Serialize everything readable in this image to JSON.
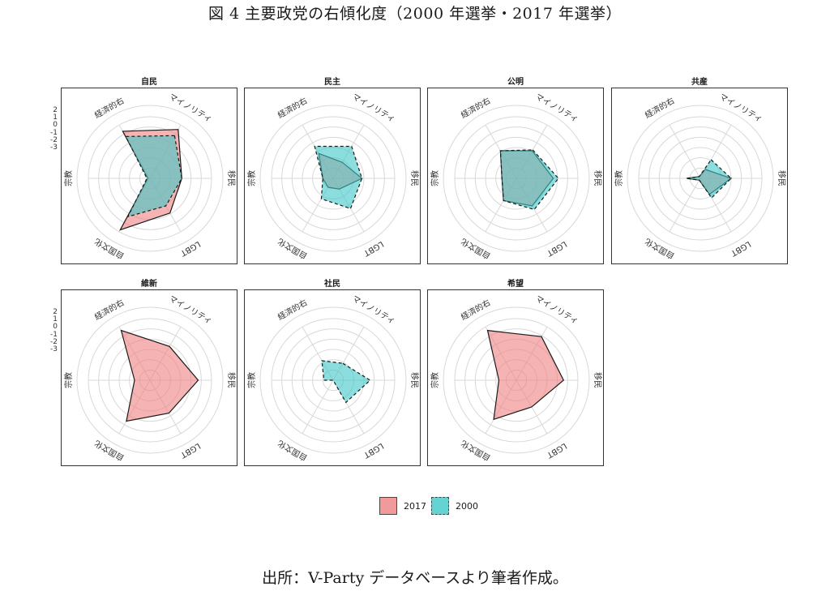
{
  "figure": {
    "title": "図 4 主要政党の右傾化度（2000 年選挙・2017 年選挙）",
    "source": "出所：V-Party データベースより筆者作成。"
  },
  "colors": {
    "s2017_fill": "#f08080",
    "s2000_fill": "#40c8c8",
    "grid": "#d8d8d8",
    "outline": "#1a1a1a"
  },
  "legend": [
    {
      "label": "2017",
      "series": "2017",
      "style": "solid"
    },
    {
      "label": "2000",
      "series": "2000",
      "style": "dashed"
    }
  ],
  "chart_data": {
    "type": "radar",
    "axes": [
      "マイノリティ",
      "移民",
      "LGBT",
      "自国文化",
      "宗教",
      "経済的右"
    ],
    "ylim": [
      -3,
      3
    ],
    "yticks": [
      "2",
      "1",
      "0",
      "-1",
      "-2",
      "-3"
    ],
    "grid": "on",
    "legend_position": "bottom",
    "panels": [
      {
        "name": "自民",
        "series": [
          {
            "name": "2017",
            "values": [
              2.5,
              0.1,
              0.9,
              2.8,
              -2.8,
              2.3
            ]
          },
          {
            "name": "2000",
            "values": [
              1.8,
              0.1,
              0.1,
              1.3,
              -2.7,
              1.7
            ]
          }
        ]
      },
      {
        "name": "民主",
        "series": [
          {
            "name": "2017",
            "values": [
              -1.2,
              -0.2,
              -1.8,
              -2.0,
              -2.0,
              -0.2
            ]
          },
          {
            "name": "2000",
            "values": [
              0.6,
              -0.2,
              0.4,
              -0.7,
              -2.0,
              0.6
            ]
          }
        ]
      },
      {
        "name": "公明",
        "series": [
          {
            "name": "2017",
            "values": [
              0.1,
              0.6,
              0.1,
              -0.5,
              -1.6,
              0.1
            ]
          },
          {
            "name": "2000",
            "values": [
              0.2,
              1.1,
              0.5,
              -0.5,
              -1.6,
              0.1
            ]
          }
        ]
      },
      {
        "name": "共産",
        "series": [
          {
            "name": "2017",
            "values": [
              -2.0,
              0.0,
              -1.2,
              -2.8,
              -1.7,
              -2.8
            ]
          },
          {
            "name": "2000",
            "values": [
              -0.9,
              0.0,
              -0.8,
              -2.8,
              -1.6,
              -2.8
            ]
          }
        ]
      },
      {
        "name": "維新",
        "series": [
          {
            "name": "2017",
            "values": [
              0.8,
              1.7,
              0.7,
              1.6,
              -1.5,
              2.6
            ]
          }
        ]
      },
      {
        "name": "社民",
        "series": [
          {
            "name": "2000",
            "values": [
              -1.1,
              0.6,
              -0.5,
              -3.0,
              -2.1,
              -0.8
            ]
          }
        ]
      },
      {
        "name": "希望",
        "series": [
          {
            "name": "2017",
            "values": [
              1.9,
              1.6,
              0.0,
              1.4,
              -1.3,
              2.6
            ]
          }
        ]
      }
    ]
  }
}
